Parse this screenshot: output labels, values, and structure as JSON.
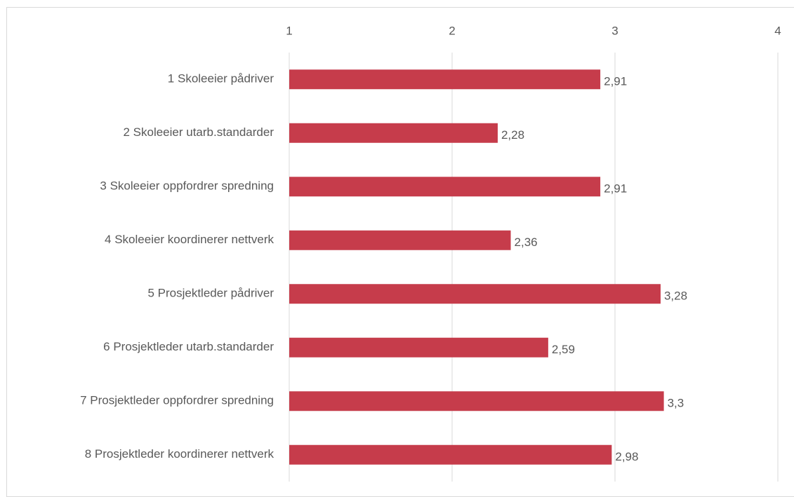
{
  "chart_data": {
    "type": "bar",
    "orientation": "horizontal",
    "categories": [
      "1 Skoleeier pådriver",
      "2 Skoleeier utarb.standarder",
      "3 Skoleeier oppfordrer spredning",
      "4 Skoleeier koordinerer nettverk",
      "5 Prosjektleder pådriver",
      "6 Prosjektleder utarb.standarder",
      "7 Prosjektleder oppfordrer spredning",
      "8 Prosjektleder koordinerer nettverk"
    ],
    "values": [
      2.91,
      2.28,
      2.91,
      2.36,
      3.28,
      2.59,
      3.3,
      2.98
    ],
    "value_labels": [
      "2,91",
      "2,28",
      "2,91",
      "2,36",
      "3,28",
      "2,59",
      "3,3",
      "2,98"
    ],
    "color": "#c63c4b",
    "xlim": [
      1,
      4
    ],
    "xticks": [
      1,
      2,
      3,
      4
    ],
    "grid": true
  }
}
